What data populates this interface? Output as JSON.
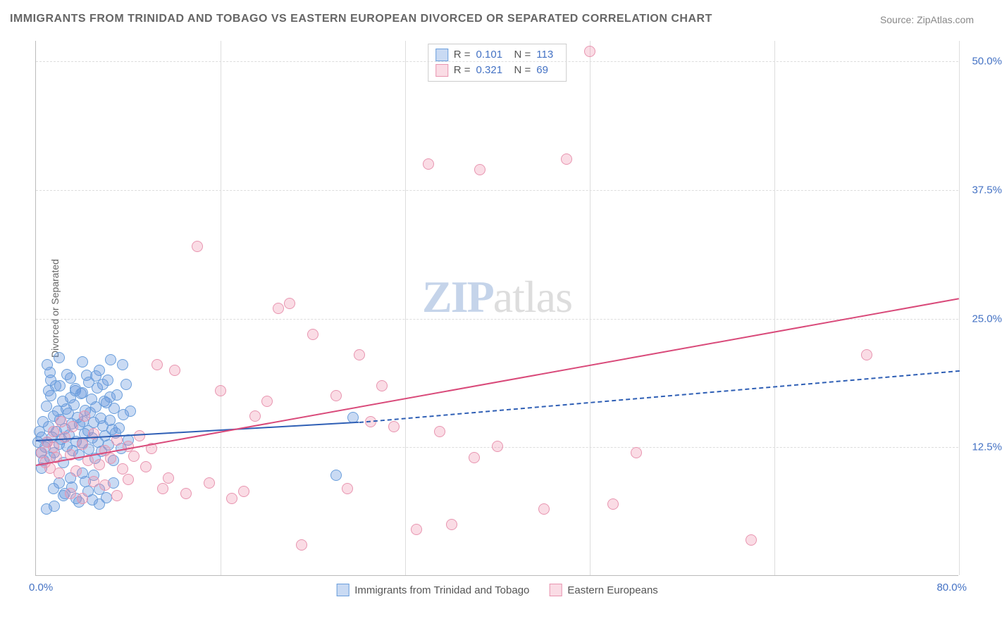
{
  "title": "IMMIGRANTS FROM TRINIDAD AND TOBAGO VS EASTERN EUROPEAN DIVORCED OR SEPARATED CORRELATION CHART",
  "source": "Source: ZipAtlas.com",
  "y_axis_label": "Divorced or Separated",
  "watermark_a": "ZIP",
  "watermark_b": "atlas",
  "chart": {
    "type": "scatter",
    "background_color": "#ffffff",
    "grid_color": "#dddddd",
    "axis_color": "#bbbbbb",
    "xlim": [
      0,
      80
    ],
    "ylim": [
      0,
      52
    ],
    "x_origin_label": "0.0%",
    "x_max_label": "80.0%",
    "y_ticks": [
      {
        "value": 12.5,
        "label": "12.5%"
      },
      {
        "value": 25.0,
        "label": "25.0%"
      },
      {
        "value": 37.5,
        "label": "37.5%"
      },
      {
        "value": 50.0,
        "label": "50.0%"
      }
    ],
    "x_grid_ticks": [
      16,
      32,
      48,
      64,
      80
    ],
    "marker_radius": 8,
    "marker_stroke_width": 1,
    "label_fontsize": 15,
    "label_color": "#4472c4",
    "series": [
      {
        "key": "series_a",
        "label": "Immigrants from Trinidad and Tobago",
        "fill_color": "rgba(100,150,220,0.35)",
        "stroke_color": "#6a9edc",
        "trend_color": "#2f5fb5",
        "r": "0.101",
        "n": "113",
        "trend_line_solid": {
          "x1": 0,
          "y1": 13.2,
          "x2": 28,
          "y2": 15.0
        },
        "trend_line_dashed": {
          "x1": 28,
          "y1": 15.0,
          "x2": 80,
          "y2": 20.0
        },
        "points": [
          [
            0.2,
            13.0
          ],
          [
            0.3,
            14.0
          ],
          [
            0.4,
            12.0
          ],
          [
            0.5,
            13.5
          ],
          [
            0.6,
            15.0
          ],
          [
            0.8,
            12.5
          ],
          [
            0.9,
            16.5
          ],
          [
            1.0,
            13.0
          ],
          [
            1.1,
            14.5
          ],
          [
            1.2,
            11.5
          ],
          [
            1.3,
            17.5
          ],
          [
            1.4,
            13.5
          ],
          [
            1.5,
            15.5
          ],
          [
            1.6,
            12.0
          ],
          [
            1.7,
            18.5
          ],
          [
            1.8,
            14.0
          ],
          [
            1.9,
            16.0
          ],
          [
            2.0,
            12.8
          ],
          [
            2.1,
            15.2
          ],
          [
            2.2,
            13.3
          ],
          [
            2.3,
            17.0
          ],
          [
            2.4,
            11.0
          ],
          [
            2.5,
            14.3
          ],
          [
            2.6,
            16.2
          ],
          [
            2.7,
            12.6
          ],
          [
            2.8,
            15.8
          ],
          [
            2.9,
            13.7
          ],
          [
            3.0,
            17.3
          ],
          [
            3.1,
            14.8
          ],
          [
            3.2,
            12.2
          ],
          [
            3.3,
            16.6
          ],
          [
            3.4,
            18.0
          ],
          [
            3.5,
            13.1
          ],
          [
            3.6,
            15.4
          ],
          [
            3.7,
            11.8
          ],
          [
            3.8,
            14.7
          ],
          [
            3.9,
            17.7
          ],
          [
            4.0,
            12.9
          ],
          [
            4.1,
            15.0
          ],
          [
            4.2,
            13.8
          ],
          [
            4.3,
            16.1
          ],
          [
            4.4,
            19.5
          ],
          [
            4.5,
            14.1
          ],
          [
            4.6,
            12.3
          ],
          [
            4.7,
            15.9
          ],
          [
            4.8,
            17.2
          ],
          [
            4.9,
            13.4
          ],
          [
            5.0,
            14.9
          ],
          [
            5.1,
            11.4
          ],
          [
            5.2,
            16.4
          ],
          [
            5.3,
            18.3
          ],
          [
            5.4,
            13.0
          ],
          [
            5.5,
            20.0
          ],
          [
            5.6,
            15.3
          ],
          [
            5.7,
            12.1
          ],
          [
            5.8,
            14.6
          ],
          [
            5.9,
            17.0
          ],
          [
            6.0,
            13.6
          ],
          [
            6.1,
            16.8
          ],
          [
            6.2,
            19.0
          ],
          [
            6.3,
            12.7
          ],
          [
            6.4,
            15.1
          ],
          [
            6.5,
            21.0
          ],
          [
            6.6,
            14.2
          ],
          [
            6.7,
            11.2
          ],
          [
            6.8,
            16.3
          ],
          [
            6.9,
            13.9
          ],
          [
            7.0,
            17.6
          ],
          [
            7.2,
            14.4
          ],
          [
            7.4,
            12.4
          ],
          [
            7.6,
            15.7
          ],
          [
            7.8,
            18.6
          ],
          [
            8.0,
            13.2
          ],
          [
            8.2,
            16.0
          ],
          [
            1.0,
            20.5
          ],
          [
            1.2,
            19.8
          ],
          [
            2.0,
            21.2
          ],
          [
            3.0,
            19.2
          ],
          [
            4.0,
            20.8
          ],
          [
            1.5,
            8.5
          ],
          [
            2.0,
            9.0
          ],
          [
            2.5,
            8.0
          ],
          [
            3.0,
            9.5
          ],
          [
            3.5,
            7.5
          ],
          [
            4.0,
            10.0
          ],
          [
            4.5,
            8.2
          ],
          [
            5.0,
            9.8
          ],
          [
            5.5,
            7.0
          ],
          [
            0.5,
            10.5
          ],
          [
            0.7,
            11.2
          ],
          [
            0.9,
            6.5
          ],
          [
            1.1,
            18.0
          ],
          [
            1.3,
            19.0
          ],
          [
            1.6,
            6.8
          ],
          [
            2.1,
            18.5
          ],
          [
            2.4,
            7.8
          ],
          [
            2.7,
            19.6
          ],
          [
            3.1,
            8.6
          ],
          [
            3.4,
            18.2
          ],
          [
            3.7,
            7.2
          ],
          [
            4.0,
            17.8
          ],
          [
            4.3,
            9.2
          ],
          [
            4.6,
            18.8
          ],
          [
            4.9,
            7.4
          ],
          [
            5.2,
            19.4
          ],
          [
            5.5,
            8.4
          ],
          [
            5.8,
            18.6
          ],
          [
            6.1,
            7.6
          ],
          [
            6.4,
            17.4
          ],
          [
            6.7,
            9.0
          ],
          [
            26,
            9.8
          ],
          [
            27.5,
            15.4
          ],
          [
            7.5,
            20.5
          ]
        ]
      },
      {
        "key": "series_b",
        "label": "Eastern Europeans",
        "fill_color": "rgba(240,140,170,0.30)",
        "stroke_color": "#e895b0",
        "trend_color": "#d94a7a",
        "r": "0.321",
        "n": "69",
        "trend_line_solid": {
          "x1": 0,
          "y1": 10.8,
          "x2": 80,
          "y2": 27.0
        },
        "points": [
          [
            0.5,
            12.0
          ],
          [
            0.8,
            11.0
          ],
          [
            1.0,
            13.0
          ],
          [
            1.2,
            10.5
          ],
          [
            1.5,
            12.5
          ],
          [
            1.8,
            11.5
          ],
          [
            2.0,
            10.0
          ],
          [
            2.5,
            13.5
          ],
          [
            3.0,
            11.8
          ],
          [
            3.5,
            10.2
          ],
          [
            4.0,
            12.8
          ],
          [
            4.5,
            11.2
          ],
          [
            5.0,
            13.8
          ],
          [
            5.5,
            10.8
          ],
          [
            6.0,
            12.2
          ],
          [
            6.5,
            11.4
          ],
          [
            7.0,
            13.2
          ],
          [
            7.5,
            10.4
          ],
          [
            8.0,
            12.6
          ],
          [
            8.5,
            11.6
          ],
          [
            9.0,
            13.6
          ],
          [
            9.5,
            10.6
          ],
          [
            10.0,
            12.4
          ],
          [
            10.5,
            20.5
          ],
          [
            11.0,
            8.5
          ],
          [
            11.5,
            9.5
          ],
          [
            12.0,
            20.0
          ],
          [
            13.0,
            8.0
          ],
          [
            14.0,
            32.0
          ],
          [
            15.0,
            9.0
          ],
          [
            16.0,
            18.0
          ],
          [
            17.0,
            7.5
          ],
          [
            18.0,
            8.2
          ],
          [
            19.0,
            15.5
          ],
          [
            20.0,
            17.0
          ],
          [
            21.0,
            26.0
          ],
          [
            22.0,
            26.5
          ],
          [
            23.0,
            3.0
          ],
          [
            24.0,
            23.5
          ],
          [
            26.0,
            17.5
          ],
          [
            27.0,
            8.5
          ],
          [
            28.0,
            21.5
          ],
          [
            29.0,
            15.0
          ],
          [
            30.0,
            18.5
          ],
          [
            31.0,
            14.5
          ],
          [
            33.0,
            4.5
          ],
          [
            34.0,
            40.0
          ],
          [
            35.0,
            14.0
          ],
          [
            36.0,
            5.0
          ],
          [
            38.0,
            11.5
          ],
          [
            38.5,
            39.5
          ],
          [
            40.0,
            12.6
          ],
          [
            44.0,
            6.5
          ],
          [
            46.0,
            40.5
          ],
          [
            48.0,
            51.0
          ],
          [
            50.0,
            7.0
          ],
          [
            52.0,
            12.0
          ],
          [
            62.0,
            3.5
          ],
          [
            72.0,
            21.5
          ],
          [
            3.0,
            8.0
          ],
          [
            4.0,
            7.5
          ],
          [
            5.0,
            9.2
          ],
          [
            6.0,
            8.8
          ],
          [
            7.0,
            7.8
          ],
          [
            8.0,
            9.4
          ],
          [
            1.5,
            14.0
          ],
          [
            2.2,
            15.0
          ],
          [
            3.2,
            14.5
          ],
          [
            4.2,
            15.5
          ]
        ]
      }
    ],
    "legend_top": {
      "r_label": "R =",
      "n_label": "N ="
    }
  }
}
